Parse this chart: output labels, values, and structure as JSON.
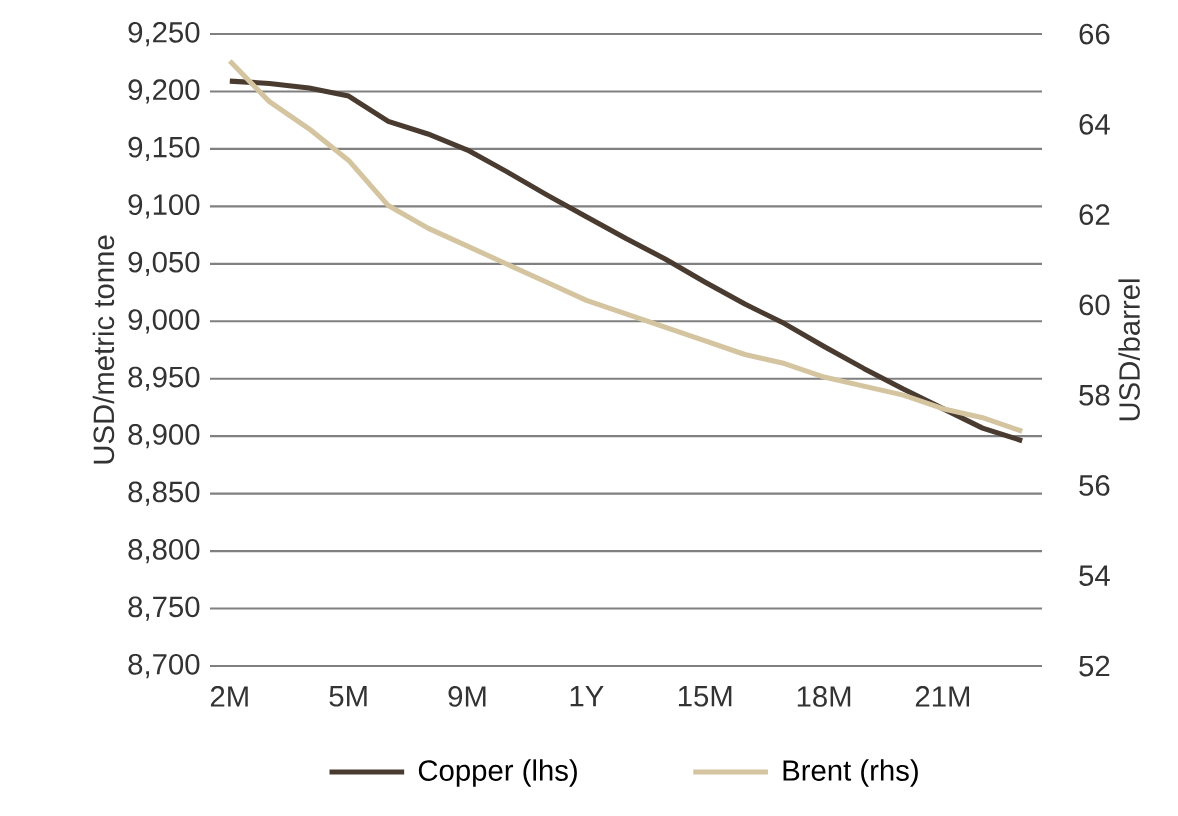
{
  "chart_data": {
    "type": "line",
    "categories": [
      "2M",
      null,
      null,
      "5M",
      null,
      null,
      "9M",
      null,
      null,
      "1Y",
      null,
      null,
      "15M",
      null,
      null,
      "18M",
      null,
      null,
      "21M",
      null,
      null
    ],
    "series": [
      {
        "name": "Copper (lhs)",
        "color": "#4a3b30",
        "values": [
          9209,
          9207,
          9203,
          9196,
          9174,
          9163,
          9149,
          9130,
          9110,
          9091,
          9072,
          9054,
          9034,
          9015,
          8998,
          8978,
          8959,
          8941,
          8924,
          8907,
          8896
        ]
      },
      {
        "name": "Brent (rhs)",
        "color": "#d4c4a0",
        "axis": "y2",
        "values": [
          65.4,
          64.5,
          63.9,
          63.2,
          62.2,
          61.7,
          61.3,
          60.9,
          60.5,
          60.1,
          59.8,
          59.5,
          59.2,
          58.9,
          58.7,
          58.4,
          58.2,
          58.0,
          57.7,
          57.5,
          57.2
        ]
      }
    ],
    "ylabel": "USD/metric tonne",
    "y2label": "USD/barrel",
    "ylim": [
      8700,
      9250
    ],
    "yticks": [
      {
        "value": 8700,
        "label": "8,700"
      },
      {
        "value": 8750,
        "label": "8,750"
      },
      {
        "value": 8800,
        "label": "8,800"
      },
      {
        "value": 8850,
        "label": "8,850"
      },
      {
        "value": 8900,
        "label": "8,900"
      },
      {
        "value": 8950,
        "label": "8,950"
      },
      {
        "value": 9000,
        "label": "9,000"
      },
      {
        "value": 9050,
        "label": "9,050"
      },
      {
        "value": 9100,
        "label": "9,100"
      },
      {
        "value": 9150,
        "label": "9,150"
      },
      {
        "value": 9200,
        "label": "9,200"
      },
      {
        "value": 9250,
        "label": "9,250"
      }
    ],
    "y2lim": [
      52,
      66
    ],
    "y2ticks": [
      52,
      54,
      56,
      58,
      60,
      62,
      64,
      66
    ],
    "grid": "y",
    "legend": "bottom"
  }
}
